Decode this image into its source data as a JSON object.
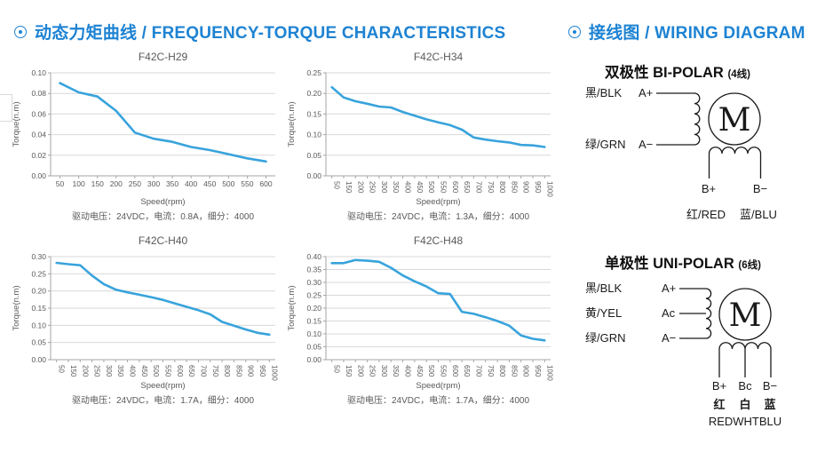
{
  "colors": {
    "accent_blue": "#1e83d3",
    "chart_line": "#38a3dc",
    "grid": "#d9d9d9",
    "axis": "#a6a6a6",
    "chart_text": "#595959",
    "wiring_ink": "#1a1a1a"
  },
  "header_left": {
    "title": "动态力矩曲线 / FREQUENCY-TORQUE CHARACTERISTICS"
  },
  "header_right": {
    "title": "接线图 / WIRING DIAGRAM"
  },
  "chart_data": [
    {
      "type": "line",
      "title": "F42C-H29",
      "xlabel": "Speed(rpm)",
      "ylabel": "Torque(n.m)",
      "caption": "驱动电压：24VDC，电流：0.8A，细分：4000",
      "x": [
        50,
        100,
        150,
        200,
        250,
        300,
        350,
        400,
        450,
        500,
        550,
        600
      ],
      "values": [
        0.09,
        0.081,
        0.077,
        0.063,
        0.042,
        0.036,
        0.033,
        0.028,
        0.025,
        0.021,
        0.017,
        0.014
      ],
      "ylim": [
        0,
        0.1
      ],
      "ytick": 0.02,
      "rotated_x_labels": false,
      "grid": true,
      "legend": "none"
    },
    {
      "type": "line",
      "title": "F42C-H34",
      "xlabel": "Speed(rpm)",
      "ylabel": "Torque(n.m)",
      "caption": "驱动电压：24VDC，电流：1.3A，细分：4000",
      "x": [
        50,
        150,
        200,
        250,
        300,
        350,
        400,
        450,
        500,
        550,
        600,
        650,
        700,
        750,
        800,
        850,
        900,
        950,
        1000
      ],
      "values": [
        0.215,
        0.19,
        0.181,
        0.175,
        0.168,
        0.166,
        0.155,
        0.146,
        0.137,
        0.13,
        0.123,
        0.112,
        0.093,
        0.088,
        0.084,
        0.081,
        0.075,
        0.074,
        0.07
      ],
      "ylim": [
        0,
        0.25
      ],
      "ytick": 0.05,
      "rotated_x_labels": true,
      "grid": true,
      "legend": "none"
    },
    {
      "type": "line",
      "title": "F42C-H40",
      "xlabel": "Speed(rpm)",
      "ylabel": "Torque(n.m)",
      "caption": "驱动电压：24VDC，电流：1.7A，细分：4000",
      "x": [
        50,
        150,
        200,
        250,
        300,
        350,
        400,
        450,
        500,
        550,
        600,
        650,
        700,
        750,
        800,
        850,
        900,
        950,
        1000
      ],
      "values": [
        0.282,
        0.278,
        0.275,
        0.245,
        0.22,
        0.204,
        0.196,
        0.189,
        0.182,
        0.174,
        0.164,
        0.154,
        0.144,
        0.132,
        0.11,
        0.099,
        0.088,
        0.078,
        0.073
      ],
      "ylim": [
        0,
        0.3
      ],
      "ytick": 0.05,
      "rotated_x_labels": true,
      "grid": true,
      "legend": "none"
    },
    {
      "type": "line",
      "title": "F42C-H48",
      "xlabel": "Speed(rpm)",
      "ylabel": "Torque(n.m)",
      "caption": "驱动电压：24VDC，电流：1.7A，细分：4000",
      "x": [
        50,
        150,
        200,
        250,
        300,
        350,
        400,
        450,
        500,
        550,
        600,
        650,
        700,
        750,
        800,
        850,
        900,
        950,
        1000
      ],
      "values": [
        0.375,
        0.375,
        0.387,
        0.384,
        0.38,
        0.357,
        0.327,
        0.304,
        0.284,
        0.258,
        0.255,
        0.186,
        0.178,
        0.165,
        0.15,
        0.132,
        0.094,
        0.081,
        0.075
      ],
      "ylim": [
        0,
        0.4
      ],
      "ytick": 0.05,
      "rotated_x_labels": true,
      "grid": true,
      "legend": "none"
    }
  ],
  "wiring": {
    "bipolar": {
      "title_zh": "双极性",
      "title_en": "BI-POLAR",
      "wire_count": "(4线)",
      "motor": "M",
      "phase_a": [
        {
          "wire": "黑/BLK",
          "terminal": "A+"
        },
        {
          "wire": "绿/GRN",
          "terminal": "A−"
        }
      ],
      "phase_b_terminals": [
        "B+",
        "B−"
      ],
      "phase_b_wires": [
        "红/RED",
        "蓝/BLU"
      ]
    },
    "unipolar": {
      "title_zh": "单极性",
      "title_en": "UNI-POLAR",
      "wire_count": "(6线)",
      "motor": "M",
      "phase_a": [
        {
          "wire": "黑/BLK",
          "terminal": "A+"
        },
        {
          "wire": "黄/YEL",
          "terminal": "Ac"
        },
        {
          "wire": "绿/GRN",
          "terminal": "A−"
        }
      ],
      "phase_b_terminals": [
        "B+",
        "Bc",
        "B−"
      ],
      "phase_b_wires": [
        "红",
        "白",
        "蓝"
      ],
      "phase_b_combined": "REDWHTBLU"
    }
  }
}
